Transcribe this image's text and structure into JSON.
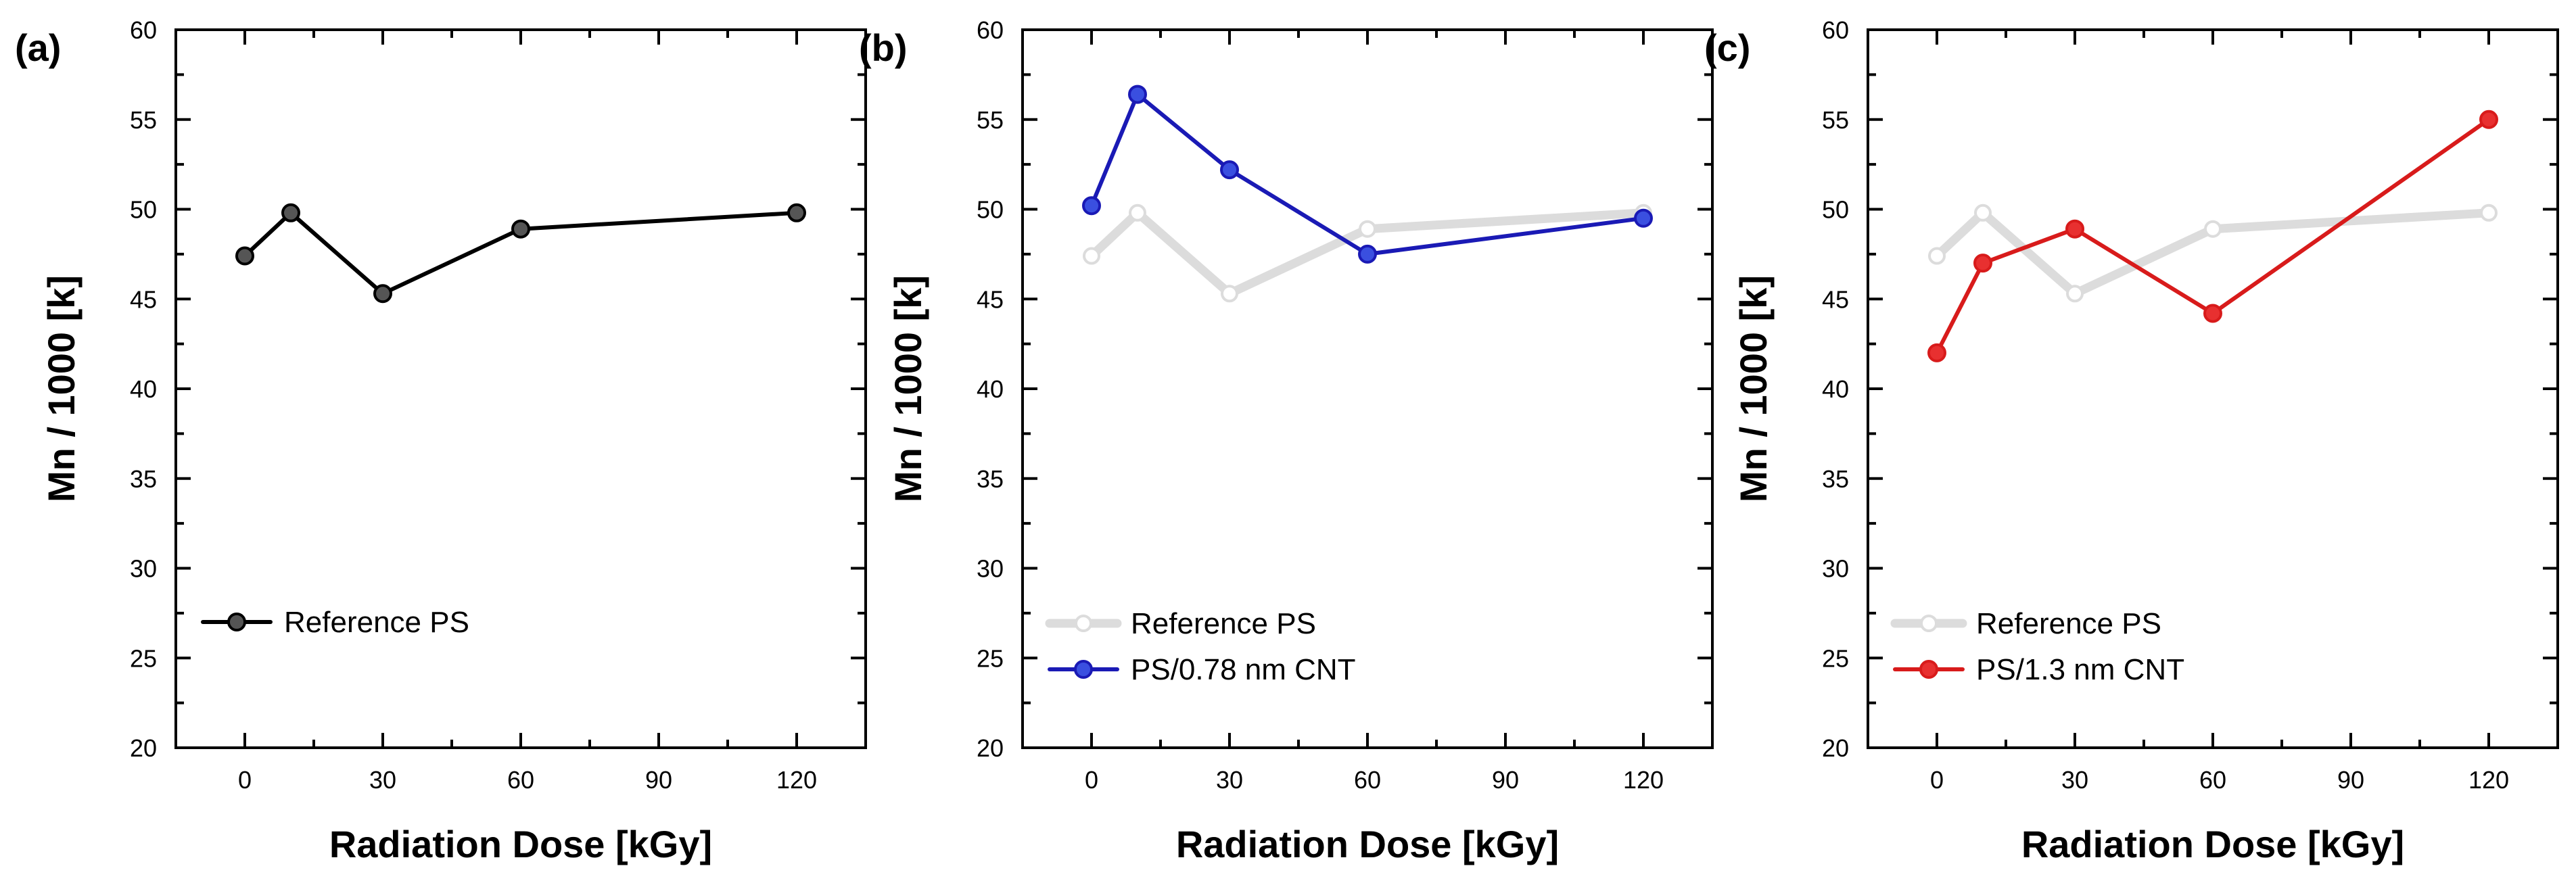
{
  "chart_data": [
    {
      "panel_label": "(a)",
      "type": "line",
      "xlabel": "Radiation Dose [kGy]",
      "ylabel": "Mn / 1000 [k]",
      "xlim": [
        -15,
        135
      ],
      "ylim": [
        20,
        60
      ],
      "xticks": [
        0,
        30,
        60,
        90,
        120
      ],
      "yticks": [
        20,
        25,
        30,
        35,
        40,
        45,
        50,
        55,
        60
      ],
      "legend_position": "lower-left",
      "series": [
        {
          "name": "Reference PS",
          "color": "#000000",
          "marker_fill": "#555555",
          "style": "normal",
          "x": [
            0,
            10,
            30,
            60,
            120
          ],
          "values": [
            47.4,
            49.8,
            45.3,
            48.9,
            49.8
          ]
        }
      ]
    },
    {
      "panel_label": "(b)",
      "type": "line",
      "xlabel": "Radiation Dose [kGy]",
      "ylabel": "Mn / 1000 [k]",
      "xlim": [
        -15,
        135
      ],
      "ylim": [
        20,
        60
      ],
      "xticks": [
        0,
        30,
        60,
        90,
        120
      ],
      "yticks": [
        20,
        25,
        30,
        35,
        40,
        45,
        50,
        55,
        60
      ],
      "legend_position": "lower-left",
      "series": [
        {
          "name": "Reference PS",
          "color": "#dcdcdc",
          "marker_fill": "#ffffff",
          "style": "faded",
          "x": [
            0,
            10,
            30,
            60,
            120
          ],
          "values": [
            47.4,
            49.8,
            45.3,
            48.9,
            49.8
          ]
        },
        {
          "name": "PS/0.78 nm CNT",
          "color": "#1a1ab5",
          "marker_fill": "#3a4fe0",
          "style": "normal",
          "x": [
            0,
            10,
            30,
            60,
            120
          ],
          "values": [
            50.2,
            56.4,
            52.2,
            47.5,
            49.5
          ]
        }
      ]
    },
    {
      "panel_label": "(c)",
      "type": "line",
      "xlabel": "Radiation Dose [kGy]",
      "ylabel": "Mn / 1000 [k]",
      "xlim": [
        -15,
        135
      ],
      "ylim": [
        20,
        60
      ],
      "xticks": [
        0,
        30,
        60,
        90,
        120
      ],
      "yticks": [
        20,
        25,
        30,
        35,
        40,
        45,
        50,
        55,
        60
      ],
      "legend_position": "lower-left",
      "series": [
        {
          "name": "Reference PS",
          "color": "#dcdcdc",
          "marker_fill": "#ffffff",
          "style": "faded",
          "x": [
            0,
            10,
            30,
            60,
            120
          ],
          "values": [
            47.4,
            49.8,
            45.3,
            48.9,
            49.8
          ]
        },
        {
          "name": "PS/1.3 nm CNT",
          "color": "#d81b1b",
          "marker_fill": "#e83030",
          "style": "normal",
          "x": [
            0,
            10,
            30,
            60,
            120
          ],
          "values": [
            42.0,
            47.0,
            48.9,
            44.2,
            55.0
          ]
        }
      ]
    }
  ]
}
